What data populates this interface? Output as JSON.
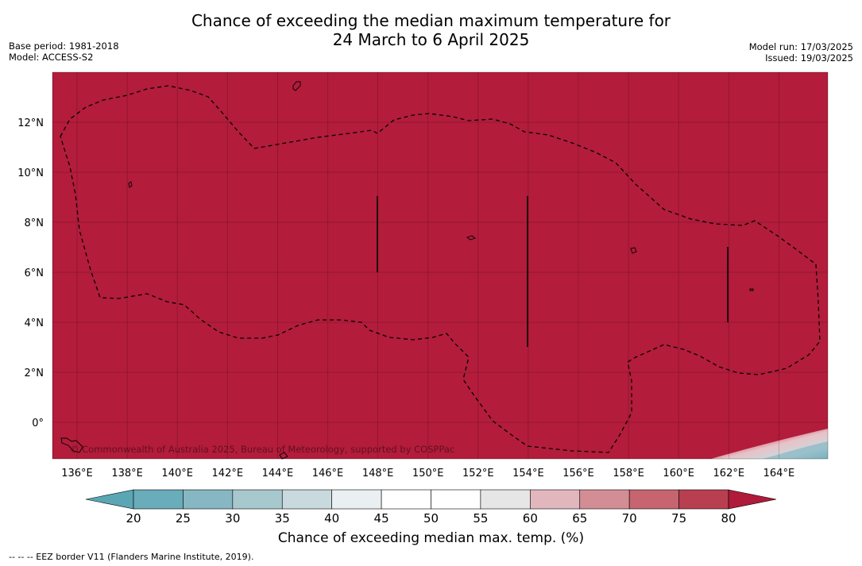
{
  "title": {
    "line1": "Chance of exceeding the median maximum temperature for",
    "line2": "24 March to 6 April 2025"
  },
  "meta_left": {
    "base_period": "Base period: 1981-2018",
    "model": "Model: ACCESS-S2"
  },
  "meta_right": {
    "model_run": "Model run: 17/03/2025",
    "issued": "Issued: 19/03/2025"
  },
  "map": {
    "fill_color": "#b31c3b",
    "lon_labels": [
      "136°E",
      "138°E",
      "140°E",
      "142°E",
      "144°E",
      "146°E",
      "148°E",
      "150°E",
      "152°E",
      "154°E",
      "156°E",
      "158°E",
      "160°E",
      "162°E",
      "164°E"
    ],
    "lat_labels": [
      "12°N",
      "10°N",
      "8°N",
      "6°N",
      "4°N",
      "2°N",
      "0°"
    ],
    "copyright": "© Commonwealth of Australia 2025, Bureau of Meteorology, supported by COSPPac"
  },
  "colorbar": {
    "ticks": [
      "20",
      "25",
      "30",
      "35",
      "40",
      "45",
      "50",
      "55",
      "60",
      "65",
      "70",
      "75",
      "80"
    ],
    "colors": [
      "#5ba6b4",
      "#69acba",
      "#86b7c3",
      "#a7c8cd",
      "#c8dadd",
      "#eaf0f2",
      "#ffffff",
      "#ffffff",
      "#e6e6e6",
      "#e1b7bd",
      "#d38d95",
      "#c6646f",
      "#b83f50",
      "#b01a3b"
    ],
    "label": "Chance of exceeding median max. temp. (%)"
  },
  "footer": "--  --  -- EEZ border V11 (Flanders Marine Institute, 2019)."
}
